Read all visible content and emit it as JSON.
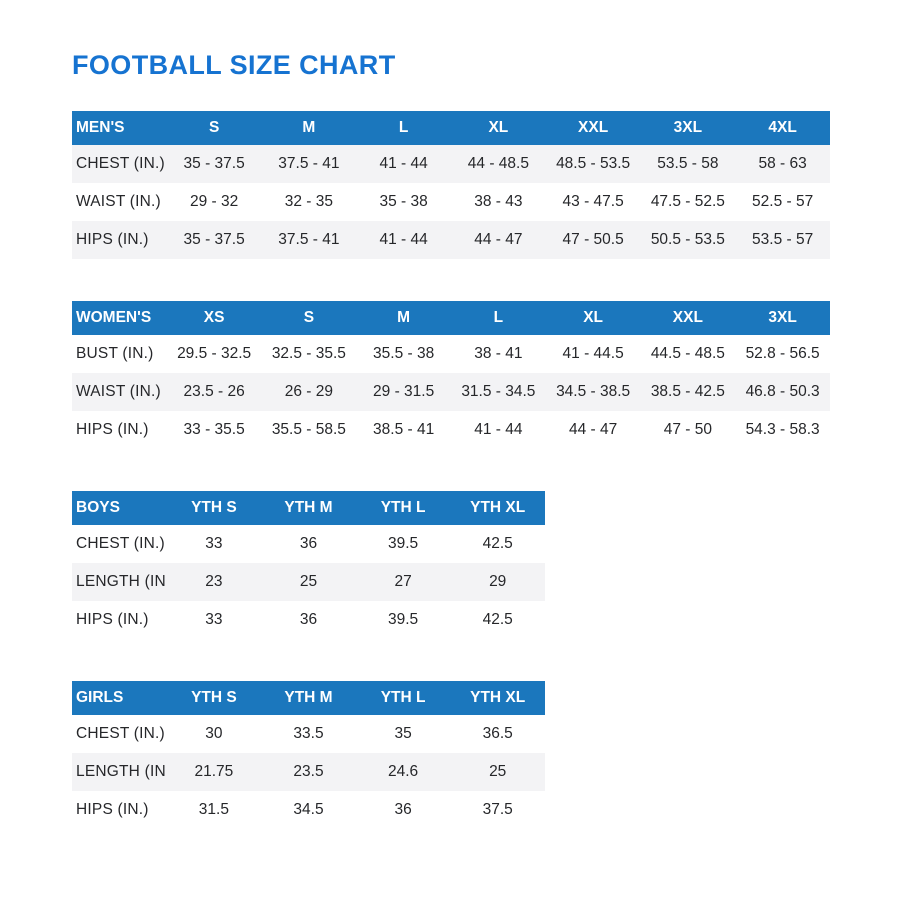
{
  "page": {
    "title": "FOOTBALL SIZE CHART"
  },
  "colors": {
    "title": "#1673d1",
    "header_bg": "#1b77bd",
    "header_text": "#ffffff",
    "stripe": "#f3f3f5",
    "text": "#26272a"
  },
  "tables": [
    {
      "id": "mens",
      "size": "wide",
      "header": [
        "MEN'S",
        "S",
        "M",
        "L",
        "XL",
        "XXL",
        "3XL",
        "4XL"
      ],
      "rows": [
        {
          "label": "CHEST (IN.)",
          "shaded": true,
          "values": [
            "35 - 37.5",
            "37.5 - 41",
            "41 - 44",
            "44 - 48.5",
            "48.5 - 53.5",
            "53.5 - 58",
            "58 - 63"
          ]
        },
        {
          "label": "WAIST (IN.)",
          "shaded": false,
          "values": [
            "29 - 32",
            "32 - 35",
            "35 - 38",
            "38 - 43",
            "43 - 47.5",
            "47.5 - 52.5",
            "52.5 - 57"
          ]
        },
        {
          "label": "HIPS (IN.)",
          "shaded": true,
          "values": [
            "35 - 37.5",
            "37.5 - 41",
            "41 - 44",
            "44 - 47",
            "47 - 50.5",
            "50.5 - 53.5",
            "53.5 - 57"
          ]
        }
      ]
    },
    {
      "id": "womens",
      "size": "wide",
      "header": [
        "WOMEN'S",
        "XS",
        "S",
        "M",
        "L",
        "XL",
        "XXL",
        "3XL"
      ],
      "rows": [
        {
          "label": "BUST (IN.)",
          "shaded": false,
          "values": [
            "29.5 - 32.5",
            "32.5 - 35.5",
            "35.5 - 38",
            "38 - 41",
            "41 - 44.5",
            "44.5 - 48.5",
            "52.8 - 56.5"
          ]
        },
        {
          "label": "WAIST (IN.)",
          "shaded": true,
          "values": [
            "23.5 - 26",
            "26 - 29",
            "29 - 31.5",
            "31.5 - 34.5",
            "34.5 - 38.5",
            "38.5 - 42.5",
            "46.8 - 50.3"
          ]
        },
        {
          "label": "HIPS (IN.)",
          "shaded": false,
          "values": [
            "33 - 35.5",
            "35.5 - 58.5",
            "38.5 - 41",
            "41 - 44",
            "44 - 47",
            "47 - 50",
            "54.3 - 58.3"
          ]
        }
      ]
    },
    {
      "id": "boys",
      "size": "narrow",
      "header": [
        "BOYS",
        "YTH S",
        "YTH M",
        "YTH L",
        "YTH XL"
      ],
      "rows": [
        {
          "label": "CHEST (IN.)",
          "shaded": false,
          "values": [
            "33",
            "36",
            "39.5",
            "42.5"
          ]
        },
        {
          "label": "LENGTH (IN.)",
          "shaded": true,
          "values": [
            "23",
            "25",
            "27",
            "29"
          ]
        },
        {
          "label": "HIPS (IN.)",
          "shaded": false,
          "values": [
            "33",
            "36",
            "39.5",
            "42.5"
          ]
        }
      ]
    },
    {
      "id": "girls",
      "size": "narrow",
      "header": [
        "GIRLS",
        "YTH S",
        "YTH M",
        "YTH L",
        "YTH XL"
      ],
      "rows": [
        {
          "label": "CHEST (IN.)",
          "shaded": false,
          "values": [
            "30",
            "33.5",
            "35",
            "36.5"
          ]
        },
        {
          "label": "LENGTH (IN.)",
          "shaded": true,
          "values": [
            "21.75",
            "23.5",
            "24.6",
            "25"
          ]
        },
        {
          "label": "HIPS (IN.)",
          "shaded": false,
          "values": [
            "31.5",
            "34.5",
            "36",
            "37.5"
          ]
        }
      ]
    }
  ]
}
